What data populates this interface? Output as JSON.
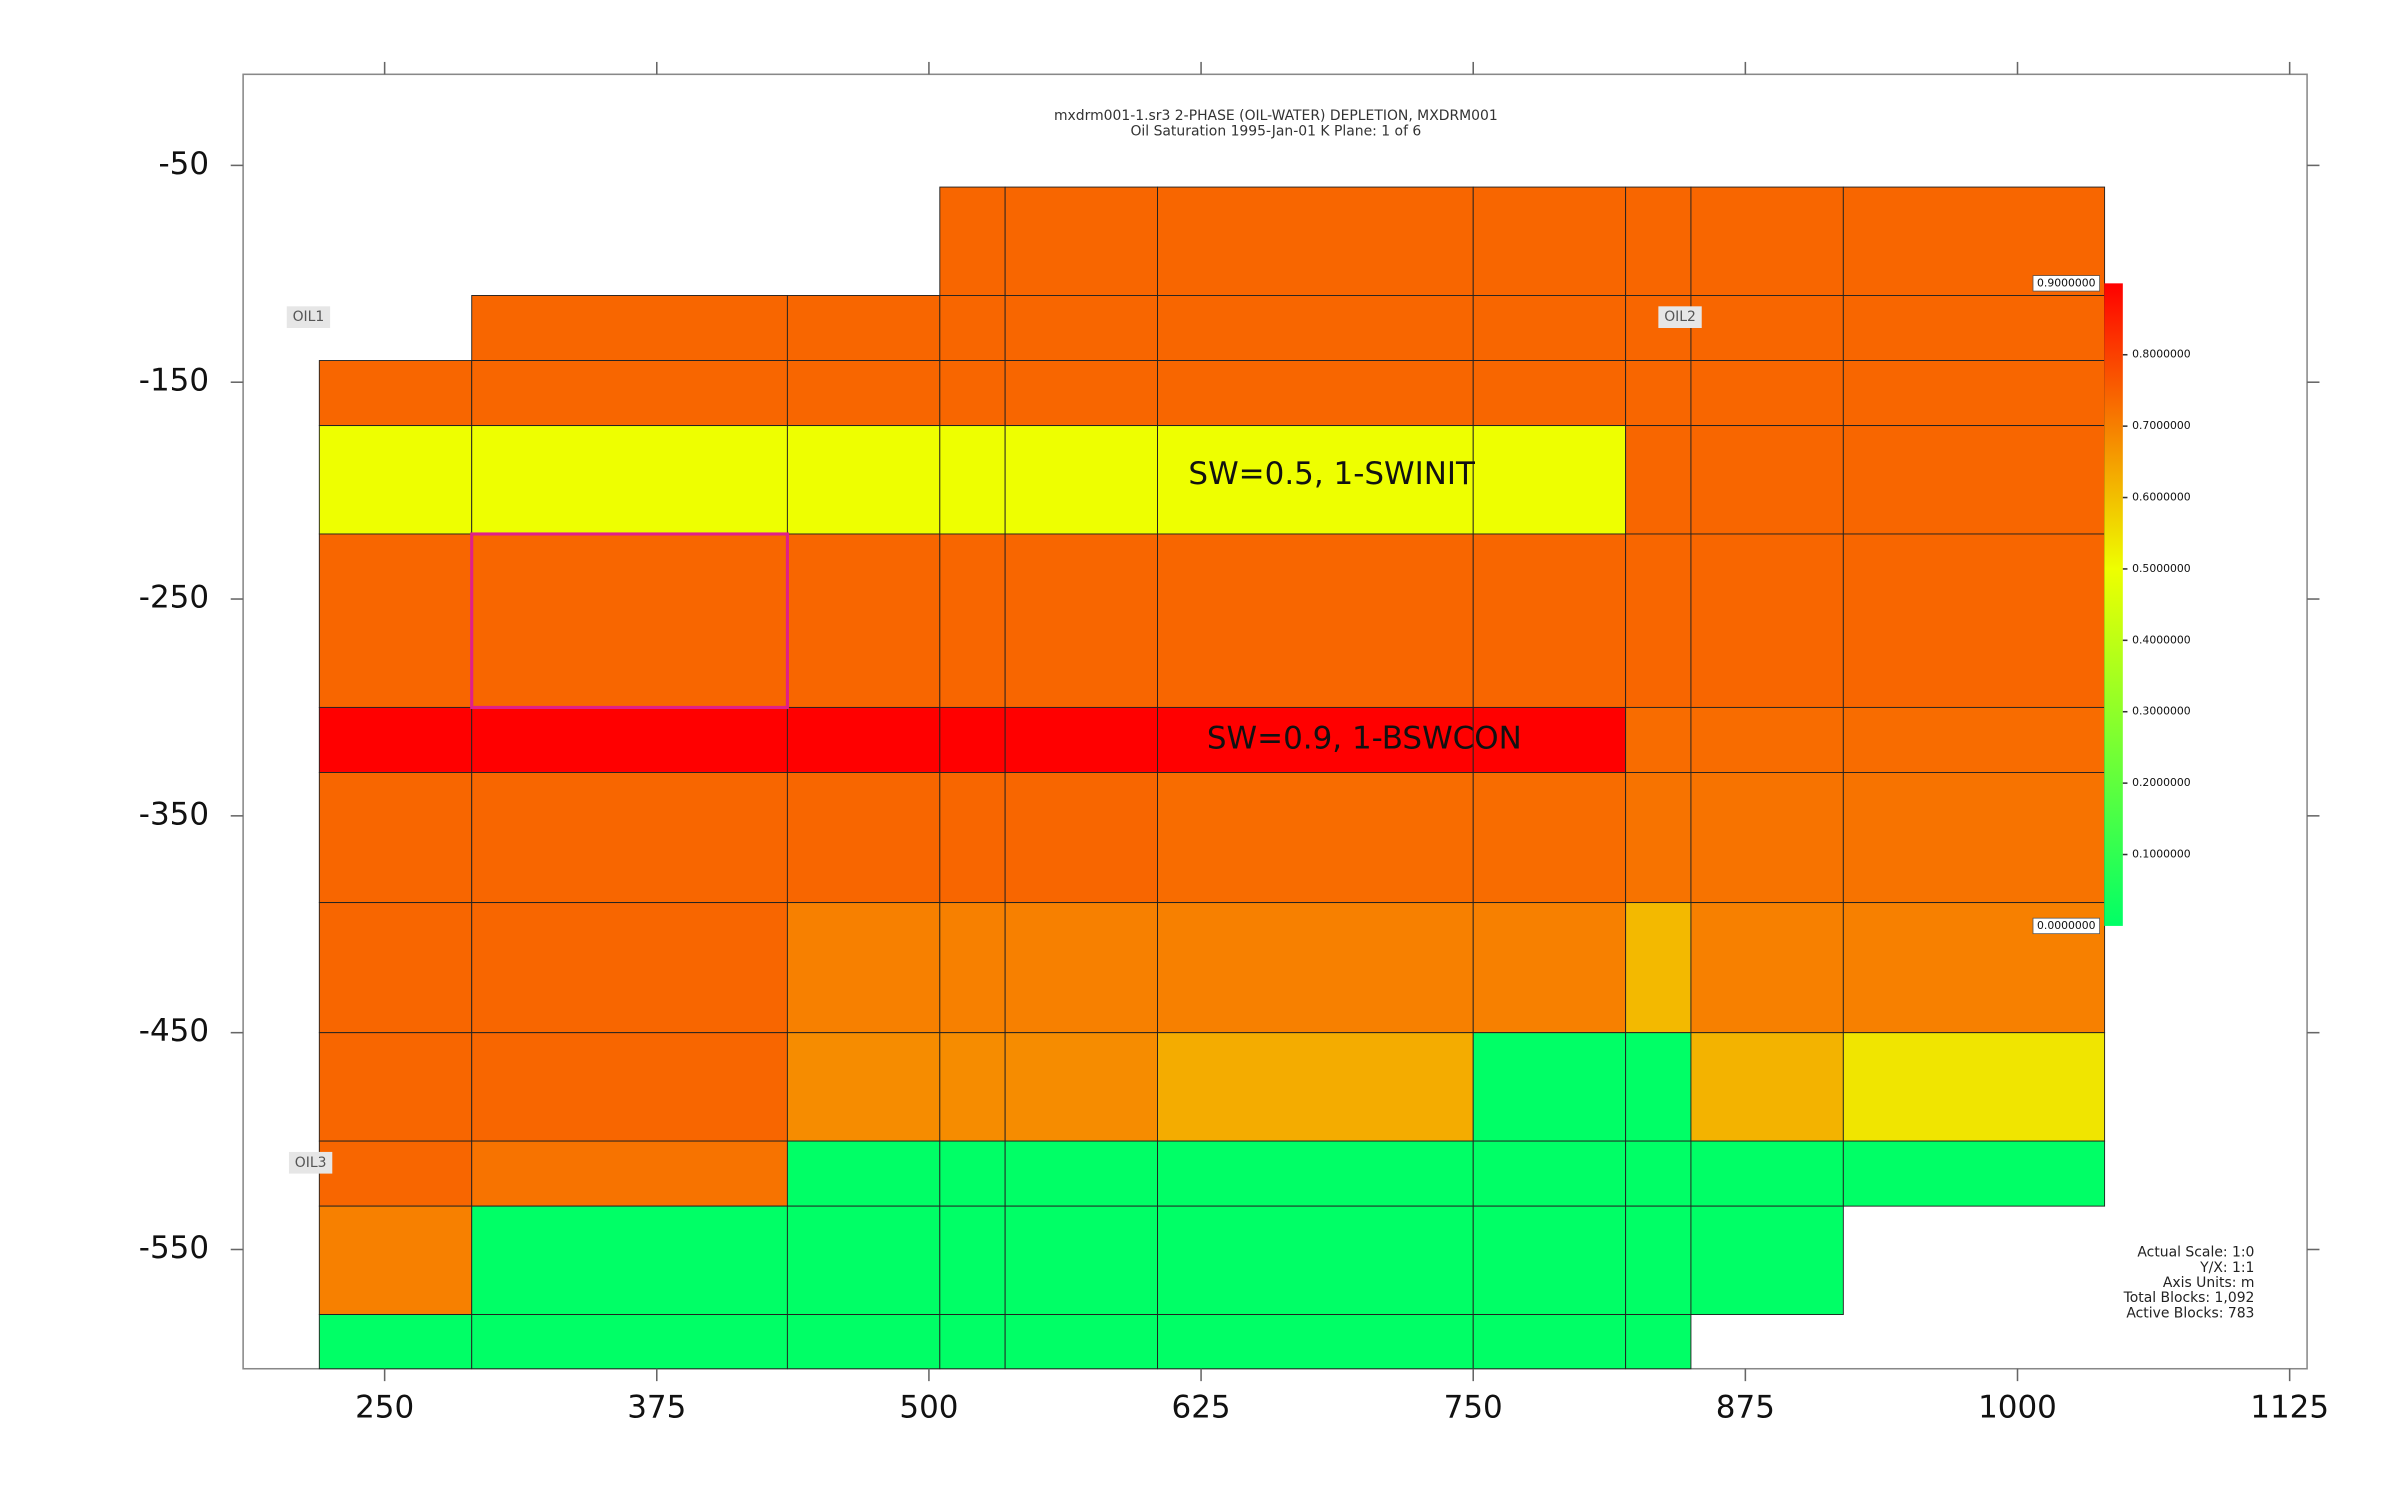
{
  "chart_data": {
    "type": "gridmap",
    "title": "mxdrm001-1.sr3 2-PHASE (OIL-WATER) DEPLETION, MXDRM001",
    "subtitle": "Oil Saturation  1995-Jan-01   K Plane:  1 of 6",
    "xlim": [
      185,
      1133
    ],
    "ylim": [
      -605,
      -8
    ],
    "xticks": [
      250,
      375,
      500,
      625,
      750,
      875,
      1000,
      1125
    ],
    "yticks": [
      -50,
      -150,
      -250,
      -350,
      -450,
      -550
    ],
    "x_edges": [
      220,
      290,
      435,
      505,
      535,
      605,
      750,
      820,
      850,
      920,
      1040
    ],
    "y_edges": [
      -60,
      -110,
      -140,
      -170,
      -220,
      -300,
      -330,
      -390,
      -450,
      -500,
      -530,
      -580,
      -605
    ],
    "values": [
      [
        null,
        null,
        null,
        0.74,
        0.74,
        0.74,
        0.74,
        0.74,
        0.74,
        0.74
      ],
      [
        null,
        0.74,
        0.74,
        0.74,
        0.74,
        0.74,
        0.74,
        0.74,
        0.74,
        0.74
      ],
      [
        0.74,
        0.74,
        0.74,
        0.74,
        0.74,
        0.74,
        0.74,
        0.74,
        0.74,
        0.74
      ],
      [
        0.5,
        0.5,
        0.5,
        0.5,
        0.5,
        0.5,
        0.5,
        0.74,
        0.74,
        0.74
      ],
      [
        0.74,
        0.74,
        0.74,
        0.74,
        0.74,
        0.74,
        0.74,
        0.74,
        0.74,
        0.74
      ],
      [
        0.9,
        0.9,
        0.9,
        0.9,
        0.9,
        0.9,
        0.9,
        0.73,
        0.73,
        0.73
      ],
      [
        0.74,
        0.74,
        0.74,
        0.74,
        0.74,
        0.73,
        0.73,
        0.72,
        0.72,
        0.72
      ],
      [
        0.74,
        0.74,
        0.7,
        0.7,
        0.7,
        0.7,
        0.7,
        0.61,
        0.7,
        0.7
      ],
      [
        0.74,
        0.74,
        0.68,
        0.68,
        0.68,
        0.63,
        0,
        0,
        0.62,
        0.54
      ],
      [
        0.74,
        0.72,
        0,
        0,
        0,
        0,
        0,
        0,
        0,
        0
      ],
      [
        0.7,
        0,
        0,
        0,
        0,
        0,
        0,
        0,
        0,
        null
      ],
      [
        0,
        0,
        0,
        0,
        0,
        0,
        0,
        0,
        null,
        null
      ]
    ],
    "colormap": [
      {
        "value": 0,
        "color": "#00ff66"
      },
      {
        "value": 0.5,
        "color": "#eeff00"
      },
      {
        "value": 0.9,
        "color": "#ff0000"
      }
    ],
    "clim": [
      0,
      0.9
    ],
    "cticks": [
      {
        "value": 0.9,
        "label": "0.9000000"
      },
      {
        "value": 0.8,
        "label": "0.8000000"
      },
      {
        "value": 0.7,
        "label": "0.7000000"
      },
      {
        "value": 0.6,
        "label": "0.6000000"
      },
      {
        "value": 0.5,
        "label": "0.5000000"
      },
      {
        "value": 0.4,
        "label": "0.4000000"
      },
      {
        "value": 0.3,
        "label": "0.3000000"
      },
      {
        "value": 0.2,
        "label": "0.2000000"
      },
      {
        "value": 0.1,
        "label": "0.1000000"
      },
      {
        "value": 0,
        "label": "0.0000000"
      }
    ],
    "wells": [
      "OIL1",
      "OIL2",
      "OIL3"
    ],
    "annotations": [
      "SW=0.5,  1-SWINIT",
      "SW=0.9, 1-BSWCON"
    ],
    "info": [
      "Actual Scale: 1:0",
      "Y/X: 1:1",
      "Axis Units: m",
      "Total Blocks: 1,092",
      "Active Blocks: 783"
    ]
  }
}
